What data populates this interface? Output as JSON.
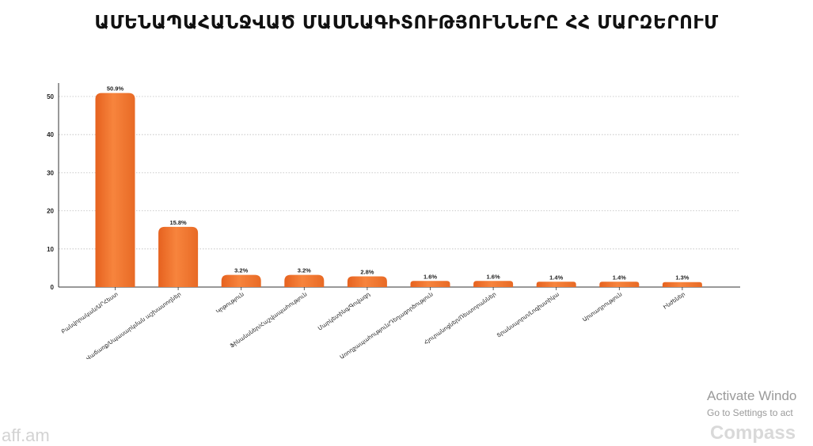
{
  "chart_data": {
    "type": "bar",
    "title": "ԱՄԵՆԱՊԱՀԱՆՋՎԱԾ ՄԱՍՆԱԳԻՏՈՒԹՅՈՒՆՆԵՐԸ ՀՀ ՄԱՐԶԵՐՈՒՄ",
    "categories": [
      "Բանվորական/ԱՐՀեստ",
      "Վաճառք/Սպասարկման աշխատողներ",
      "Կրթություն",
      "Ֆինանսներ/Հաշվապահություն",
      "Մարկետինգ/Գովազդ",
      "Առողջապահություն/Դեղագործություն",
      "Հյուրանոցներ/Ռեստորաններ",
      "Տրանսպորտ/Լոգիստիկա",
      "Արտադրություն",
      "Ինժեներ"
    ],
    "values": [
      50.9,
      15.8,
      3.2,
      3.2,
      2.8,
      1.6,
      1.6,
      1.4,
      1.4,
      1.3
    ],
    "value_labels": [
      "50.9%",
      "15.8%",
      "3.2%",
      "3.2%",
      "2.8%",
      "1.6%",
      "1.6%",
      "1.4%",
      "1.4%",
      "1.3%"
    ],
    "yticks": [
      0,
      10,
      20,
      30,
      40,
      50
    ],
    "ylim": [
      0,
      53
    ],
    "xlabel": "",
    "ylabel": "",
    "grid": true,
    "bar_color": "#f4762f"
  },
  "watermark": {
    "line1": "Activate Windo",
    "line2": "Go to Settings to act"
  },
  "logos": {
    "left": "aff.am",
    "right": "Compass"
  }
}
